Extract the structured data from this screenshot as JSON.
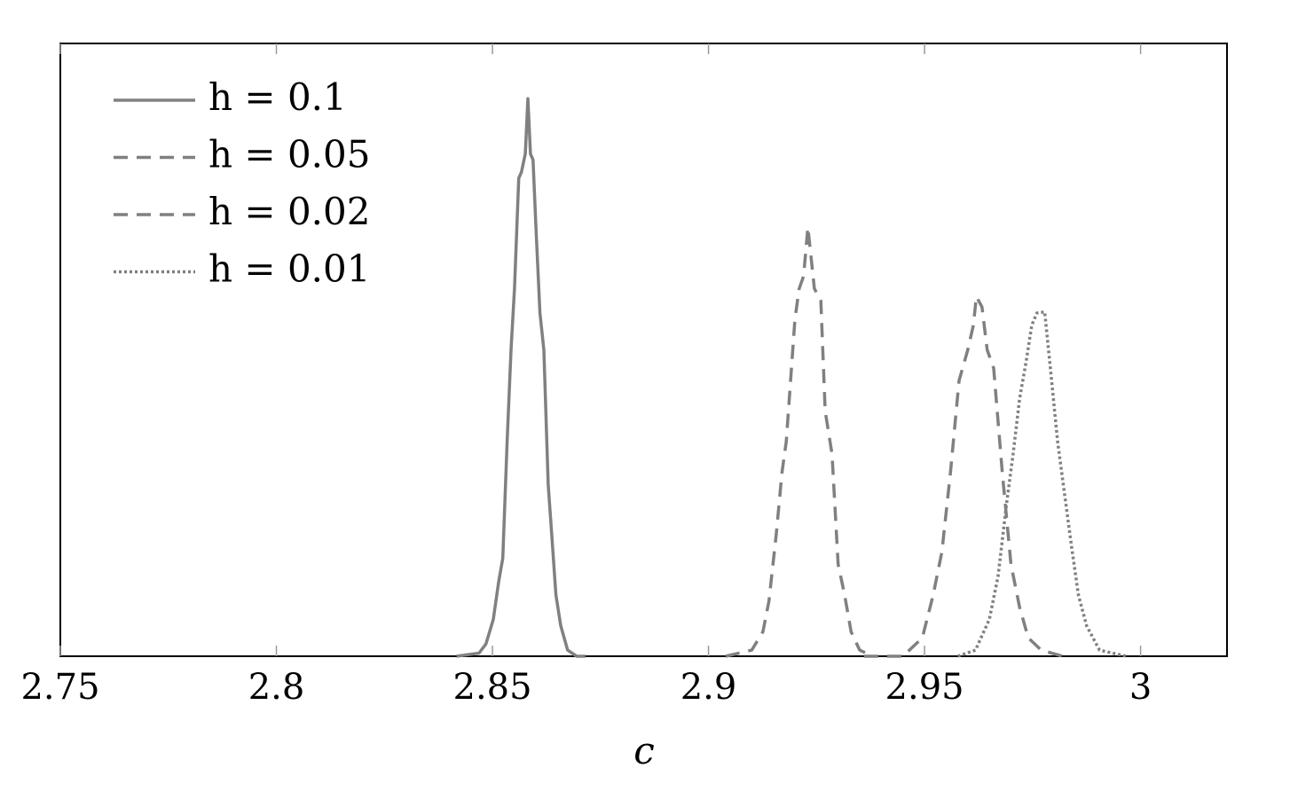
{
  "chart_data": {
    "type": "line",
    "x_label": "c",
    "xlim": [
      2.75,
      3.02
    ],
    "xticks": [
      2.75,
      2.8,
      2.85,
      2.9,
      2.95,
      3
    ],
    "ylim": [
      0,
      1
    ],
    "legend": "upper left",
    "series": [
      {
        "name": "h = 0.1",
        "color": "#808080",
        "style": "solid",
        "x": [
          2.8417,
          2.8469,
          2.8485,
          2.8502,
          2.8514,
          2.8524,
          2.8534,
          2.8543,
          2.8551,
          2.8561,
          2.8567,
          2.8576,
          2.8582,
          2.8588,
          2.8594,
          2.8602,
          2.861,
          2.8619,
          2.8629,
          2.8637,
          2.8647,
          2.8658,
          2.8674,
          2.8695,
          2.8715
        ],
        "values": [
          0,
          0.005,
          0.02,
          0.06,
          0.12,
          0.16,
          0.35,
          0.5,
          0.6,
          0.78,
          0.79,
          0.82,
          0.91,
          0.82,
          0.81,
          0.68,
          0.56,
          0.5,
          0.28,
          0.2,
          0.1,
          0.05,
          0.01,
          0,
          0
        ]
      },
      {
        "name": "h = 0.05",
        "color": "#808080",
        "style": "dashed",
        "x": [
          2.904,
          2.91,
          2.9126,
          2.914,
          2.9157,
          2.917,
          2.918,
          2.92,
          2.921,
          2.922,
          2.923,
          2.9245,
          2.926,
          2.927,
          2.9286,
          2.93,
          2.9315,
          2.933,
          2.935,
          2.938
        ],
        "values": [
          0,
          0.01,
          0.04,
          0.09,
          0.2,
          0.3,
          0.35,
          0.55,
          0.6,
          0.62,
          0.7,
          0.6,
          0.58,
          0.4,
          0.33,
          0.15,
          0.1,
          0.04,
          0.01,
          0
        ]
      },
      {
        "name": "h = 0.02",
        "color": "#808080",
        "style": "dashed",
        "x": [
          2.936,
          2.945,
          2.9495,
          2.952,
          2.954,
          2.956,
          2.958,
          2.96,
          2.9613,
          2.962,
          2.9633,
          2.9645,
          2.966,
          2.968,
          2.97,
          2.972,
          2.974,
          2.977,
          2.982
        ],
        "values": [
          0,
          0,
          0.03,
          0.1,
          0.17,
          0.3,
          0.45,
          0.5,
          0.54,
          0.587,
          0.57,
          0.5,
          0.47,
          0.3,
          0.15,
          0.08,
          0.03,
          0.01,
          0
        ]
      },
      {
        "name": "h = 0.01",
        "color": "#808080",
        "style": "dotted",
        "x": [
          2.9577,
          2.9618,
          2.965,
          2.967,
          2.969,
          2.9705,
          2.972,
          2.9735,
          2.9748,
          2.976,
          2.9778,
          2.9794,
          2.9808,
          2.9823,
          2.984,
          2.9856,
          2.9875,
          2.9905,
          2.9967
        ],
        "values": [
          0,
          0.01,
          0.06,
          0.13,
          0.25,
          0.33,
          0.42,
          0.48,
          0.54,
          0.56,
          0.562,
          0.45,
          0.35,
          0.27,
          0.18,
          0.1,
          0.05,
          0.01,
          0
        ]
      }
    ]
  }
}
